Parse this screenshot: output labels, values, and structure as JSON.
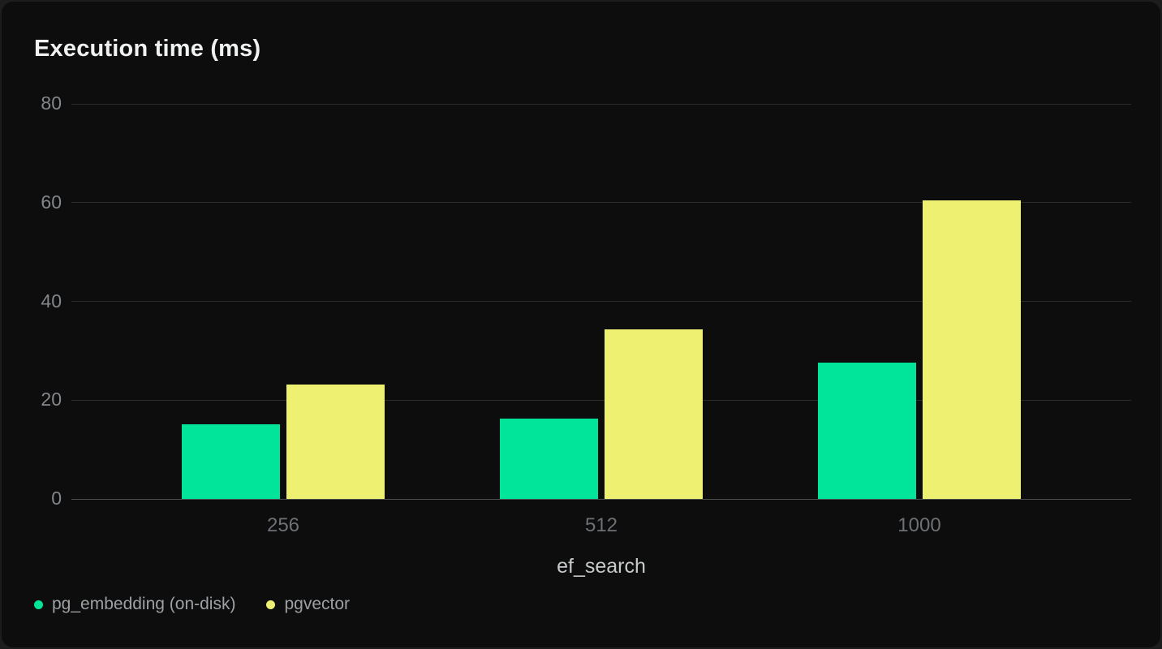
{
  "chart_data": {
    "type": "bar",
    "title": "Execution time (ms)",
    "xlabel": "ef_search",
    "ylabel": "",
    "categories": [
      "256",
      "512",
      "1000"
    ],
    "series": [
      {
        "name": "pg_embedding (on-disk)",
        "color": "#00e599",
        "values": [
          15.1,
          16.2,
          27.6
        ]
      },
      {
        "name": "pgvector",
        "color": "#edf071",
        "values": [
          23.2,
          34.4,
          60.5
        ]
      }
    ],
    "y_ticks": [
      0,
      20,
      40,
      60,
      80
    ],
    "ylim": [
      0,
      80
    ],
    "grid": true,
    "legend_position": "bottom-left",
    "colors": {
      "background": "#0c0d0c",
      "outer_background": "#1d1d1d",
      "gridline": "#282b2a",
      "axis_baseline": "#4b4f4e",
      "title_text": "#f0f1f1",
      "y_tick_text": "#83878b",
      "x_tick_text": "#6d7175",
      "x_axis_label_text": "#c7cacb",
      "legend_text": "#9da1a5"
    }
  }
}
